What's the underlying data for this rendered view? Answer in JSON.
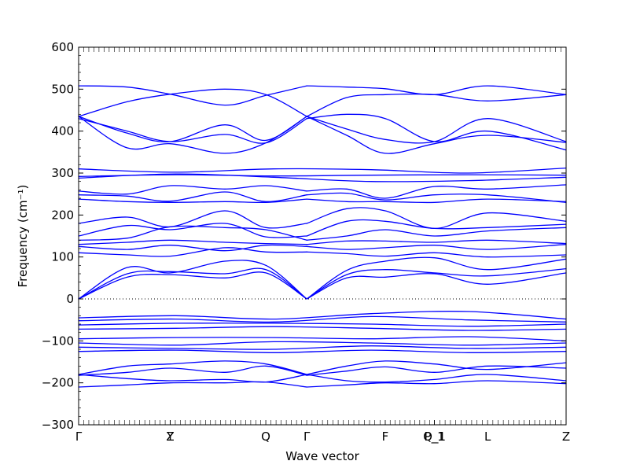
{
  "chart_data": {
    "type": "line",
    "xlabel": "Wave vector",
    "ylabel": "Frequency (cm⁻¹)",
    "ylim": [
      -300,
      600
    ],
    "yticks": [
      -300,
      -200,
      -100,
      0,
      100,
      200,
      300,
      400,
      500,
      600
    ],
    "xlim": [
      0,
      1
    ],
    "high_symmetry_points": [
      {
        "label": "Γ",
        "x": 0.0
      },
      {
        "label": "Y",
        "x": 0.188
      },
      {
        "label": "Z",
        "x": 0.188
      },
      {
        "label": "Q",
        "x": 0.384
      },
      {
        "label": "Γ",
        "x": 0.468
      },
      {
        "label": "F",
        "x": 0.629
      },
      {
        "label": "P_1",
        "x": 0.73
      },
      {
        "label": "Q_1",
        "x": 0.73
      },
      {
        "label": "L",
        "x": 0.839
      },
      {
        "label": "Z",
        "x": 1.0
      }
    ],
    "zero_line": true,
    "line_color": "#0000ff",
    "series": [
      {
        "x": [
          0,
          0.1,
          0.188,
          0.3,
          0.384,
          0.468
        ],
        "values": [
          435,
          470,
          488,
          500,
          487,
          435
        ]
      },
      {
        "x": [
          0.468,
          0.55,
          0.629,
          0.73,
          0.839,
          1.0
        ],
        "values": [
          435,
          480,
          487,
          487,
          472,
          487
        ]
      },
      {
        "x": [
          0,
          0.1,
          0.188,
          0.3,
          0.384,
          0.468
        ],
        "values": [
          508,
          505,
          488,
          462,
          485,
          508
        ]
      },
      {
        "x": [
          0.468,
          0.55,
          0.629,
          0.73,
          0.839,
          1.0
        ],
        "values": [
          508,
          505,
          501,
          487,
          508,
          487
        ]
      },
      {
        "x": [
          0,
          0.1,
          0.188,
          0.3,
          0.384,
          0.468
        ],
        "values": [
          435,
          395,
          375,
          415,
          378,
          435
        ]
      },
      {
        "x": [
          0.468,
          0.55,
          0.629,
          0.73,
          0.839,
          1.0
        ],
        "values": [
          435,
          405,
          380,
          375,
          430,
          375
        ]
      },
      {
        "x": [
          0,
          0.1,
          0.188,
          0.3,
          0.384,
          0.468
        ],
        "values": [
          435,
          360,
          370,
          347,
          372,
          435
        ]
      },
      {
        "x": [
          0.468,
          0.55,
          0.629,
          0.73,
          0.839,
          1.0
        ],
        "values": [
          435,
          390,
          347,
          370,
          390,
          373
        ]
      },
      {
        "x": [
          0,
          0.1,
          0.188,
          0.3,
          0.384,
          0.468
        ],
        "values": [
          430,
          400,
          375,
          392,
          372,
          430
        ]
      },
      {
        "x": [
          0.468,
          0.55,
          0.629,
          0.73,
          0.839,
          1.0
        ],
        "values": [
          430,
          440,
          430,
          375,
          400,
          355
        ]
      },
      {
        "x": [
          0,
          0.2,
          0.4,
          0.6,
          0.8,
          1.0
        ],
        "values": [
          310,
          302,
          310,
          308,
          300,
          312
        ]
      },
      {
        "x": [
          0,
          0.2,
          0.4,
          0.6,
          0.8,
          1.0
        ],
        "values": [
          292,
          296,
          293,
          295,
          296,
          295
        ]
      },
      {
        "x": [
          0,
          0.2,
          0.4,
          0.6,
          0.8,
          1.0
        ],
        "values": [
          288,
          298,
          290,
          280,
          282,
          290
        ]
      },
      {
        "x": [
          0,
          0.1,
          0.188,
          0.3,
          0.384,
          0.468
        ],
        "values": [
          257,
          250,
          270,
          262,
          270,
          257
        ]
      },
      {
        "x": [
          0.468,
          0.55,
          0.629,
          0.73,
          0.839,
          1.0
        ],
        "values": [
          257,
          262,
          240,
          268,
          262,
          272
        ]
      },
      {
        "x": [
          0,
          0.1,
          0.188,
          0.3,
          0.384,
          0.468
        ],
        "values": [
          248,
          245,
          233,
          255,
          232,
          248
        ]
      },
      {
        "x": [
          0.468,
          0.55,
          0.629,
          0.73,
          0.839,
          1.0
        ],
        "values": [
          248,
          252,
          236,
          248,
          248,
          230
        ]
      },
      {
        "x": [
          0,
          0.1,
          0.188,
          0.3,
          0.384,
          0.468
        ],
        "values": [
          238,
          232,
          230,
          232,
          230,
          238
        ]
      },
      {
        "x": [
          0.468,
          0.55,
          0.629,
          0.73,
          0.839,
          1.0
        ],
        "values": [
          238,
          232,
          232,
          230,
          238,
          232
        ]
      },
      {
        "x": [
          0,
          0.1,
          0.188,
          0.3,
          0.384,
          0.468
        ],
        "values": [
          180,
          195,
          172,
          210,
          170,
          180
        ]
      },
      {
        "x": [
          0.468,
          0.55,
          0.629,
          0.73,
          0.839,
          1.0
        ],
        "values": [
          180,
          215,
          210,
          168,
          205,
          185
        ]
      },
      {
        "x": [
          0,
          0.1,
          0.188,
          0.3,
          0.384,
          0.468
        ],
        "values": [
          150,
          175,
          165,
          180,
          148,
          150
        ]
      },
      {
        "x": [
          0.468,
          0.55,
          0.629,
          0.73,
          0.839,
          1.0
        ],
        "values": [
          150,
          185,
          185,
          168,
          170,
          178
        ]
      },
      {
        "x": [
          0,
          0.1,
          0.188,
          0.3,
          0.384,
          0.468
        ],
        "values": [
          140,
          145,
          172,
          170,
          165,
          140
        ]
      },
      {
        "x": [
          0.468,
          0.55,
          0.629,
          0.73,
          0.839,
          1.0
        ],
        "values": [
          140,
          150,
          165,
          150,
          162,
          170
        ]
      },
      {
        "x": [
          0,
          0.1,
          0.188,
          0.3,
          0.384,
          0.468
        ],
        "values": [
          130,
          135,
          140,
          135,
          132,
          130
        ]
      },
      {
        "x": [
          0.468,
          0.55,
          0.629,
          0.73,
          0.839,
          1.0
        ],
        "values": [
          130,
          138,
          138,
          135,
          140,
          132
        ]
      },
      {
        "x": [
          0,
          0.1,
          0.188,
          0.3,
          0.384,
          0.468
        ],
        "values": [
          125,
          118,
          128,
          115,
          128,
          125
        ]
      },
      {
        "x": [
          0.468,
          0.55,
          0.629,
          0.73,
          0.839,
          1.0
        ],
        "values": [
          125,
          118,
          122,
          128,
          118,
          130
        ]
      },
      {
        "x": [
          0,
          0.1,
          0.188,
          0.3,
          0.384,
          0.468
        ],
        "values": [
          110,
          105,
          102,
          122,
          112,
          112
        ]
      },
      {
        "x": [
          0.468,
          0.55,
          0.629,
          0.73,
          0.839,
          1.0
        ],
        "values": [
          112,
          108,
          102,
          110,
          100,
          105
        ]
      },
      {
        "x": [
          0,
          0.1,
          0.188,
          0.3,
          0.384,
          0.468
        ],
        "values": [
          0,
          75,
          62,
          90,
          80,
          0
        ]
      },
      {
        "x": [
          0.468,
          0.55,
          0.629,
          0.73,
          0.839,
          1.0
        ],
        "values": [
          0,
          68,
          90,
          98,
          70,
          95
        ]
      },
      {
        "x": [
          0,
          0.1,
          0.188,
          0.3,
          0.384,
          0.468
        ],
        "values": [
          0,
          60,
          65,
          60,
          70,
          0
        ]
      },
      {
        "x": [
          0.468,
          0.55,
          0.629,
          0.73,
          0.839,
          1.0
        ],
        "values": [
          0,
          58,
          70,
          62,
          55,
          72
        ]
      },
      {
        "x": [
          0,
          0.1,
          0.188,
          0.3,
          0.384,
          0.468
        ],
        "values": [
          0,
          52,
          58,
          50,
          62,
          0
        ]
      },
      {
        "x": [
          0.468,
          0.55,
          0.629,
          0.73,
          0.839,
          1.0
        ],
        "values": [
          0,
          50,
          52,
          60,
          35,
          62
        ]
      },
      {
        "x": [
          0,
          0.2,
          0.4,
          0.6,
          0.8,
          1.0
        ],
        "values": [
          -45,
          -40,
          -48,
          -35,
          -30,
          -48
        ]
      },
      {
        "x": [
          0,
          0.2,
          0.4,
          0.6,
          0.8,
          1.0
        ],
        "values": [
          -52,
          -48,
          -55,
          -42,
          -50,
          -55
        ]
      },
      {
        "x": [
          0,
          0.2,
          0.4,
          0.6,
          0.8,
          1.0
        ],
        "values": [
          -62,
          -58,
          -58,
          -60,
          -65,
          -60
        ]
      },
      {
        "x": [
          0,
          0.2,
          0.4,
          0.6,
          0.8,
          1.0
        ],
        "values": [
          -72,
          -70,
          -66,
          -70,
          -75,
          -72
        ]
      },
      {
        "x": [
          0,
          0.2,
          0.4,
          0.6,
          0.8,
          1.0
        ],
        "values": [
          -95,
          -92,
          -92,
          -95,
          -90,
          -100
        ]
      },
      {
        "x": [
          0,
          0.2,
          0.4,
          0.6,
          0.8,
          1.0
        ],
        "values": [
          -105,
          -110,
          -102,
          -105,
          -110,
          -105
        ]
      },
      {
        "x": [
          0,
          0.2,
          0.4,
          0.6,
          0.8,
          1.0
        ],
        "values": [
          -115,
          -118,
          -120,
          -112,
          -118,
          -115
        ]
      },
      {
        "x": [
          0,
          0.2,
          0.4,
          0.6,
          0.8,
          1.0
        ],
        "values": [
          -125,
          -122,
          -128,
          -122,
          -128,
          -125
        ]
      },
      {
        "x": [
          0,
          0.1,
          0.188,
          0.3,
          0.384,
          0.468
        ],
        "values": [
          -180,
          -160,
          -155,
          -148,
          -155,
          -180
        ]
      },
      {
        "x": [
          0.468,
          0.55,
          0.629,
          0.73,
          0.839,
          1.0
        ],
        "values": [
          -180,
          -160,
          -148,
          -155,
          -168,
          -152
        ]
      },
      {
        "x": [
          0,
          0.1,
          0.188,
          0.3,
          0.384,
          0.468
        ],
        "values": [
          -182,
          -175,
          -165,
          -175,
          -160,
          -182
        ]
      },
      {
        "x": [
          0.468,
          0.55,
          0.629,
          0.73,
          0.839,
          1.0
        ],
        "values": [
          -182,
          -172,
          -162,
          -175,
          -160,
          -165
        ]
      },
      {
        "x": [
          0,
          0.1,
          0.188,
          0.3,
          0.384,
          0.468
        ],
        "values": [
          -180,
          -190,
          -195,
          -192,
          -198,
          -180
        ]
      },
      {
        "x": [
          0.468,
          0.55,
          0.629,
          0.73,
          0.839,
          1.0
        ],
        "values": [
          -180,
          -195,
          -198,
          -192,
          -180,
          -195
        ]
      },
      {
        "x": [
          0,
          0.1,
          0.188,
          0.3,
          0.384,
          0.468
        ],
        "values": [
          -210,
          -205,
          -200,
          -200,
          -198,
          -210
        ]
      },
      {
        "x": [
          0.468,
          0.55,
          0.629,
          0.73,
          0.839,
          1.0
        ],
        "values": [
          -210,
          -205,
          -200,
          -202,
          -195,
          -202
        ]
      }
    ]
  }
}
